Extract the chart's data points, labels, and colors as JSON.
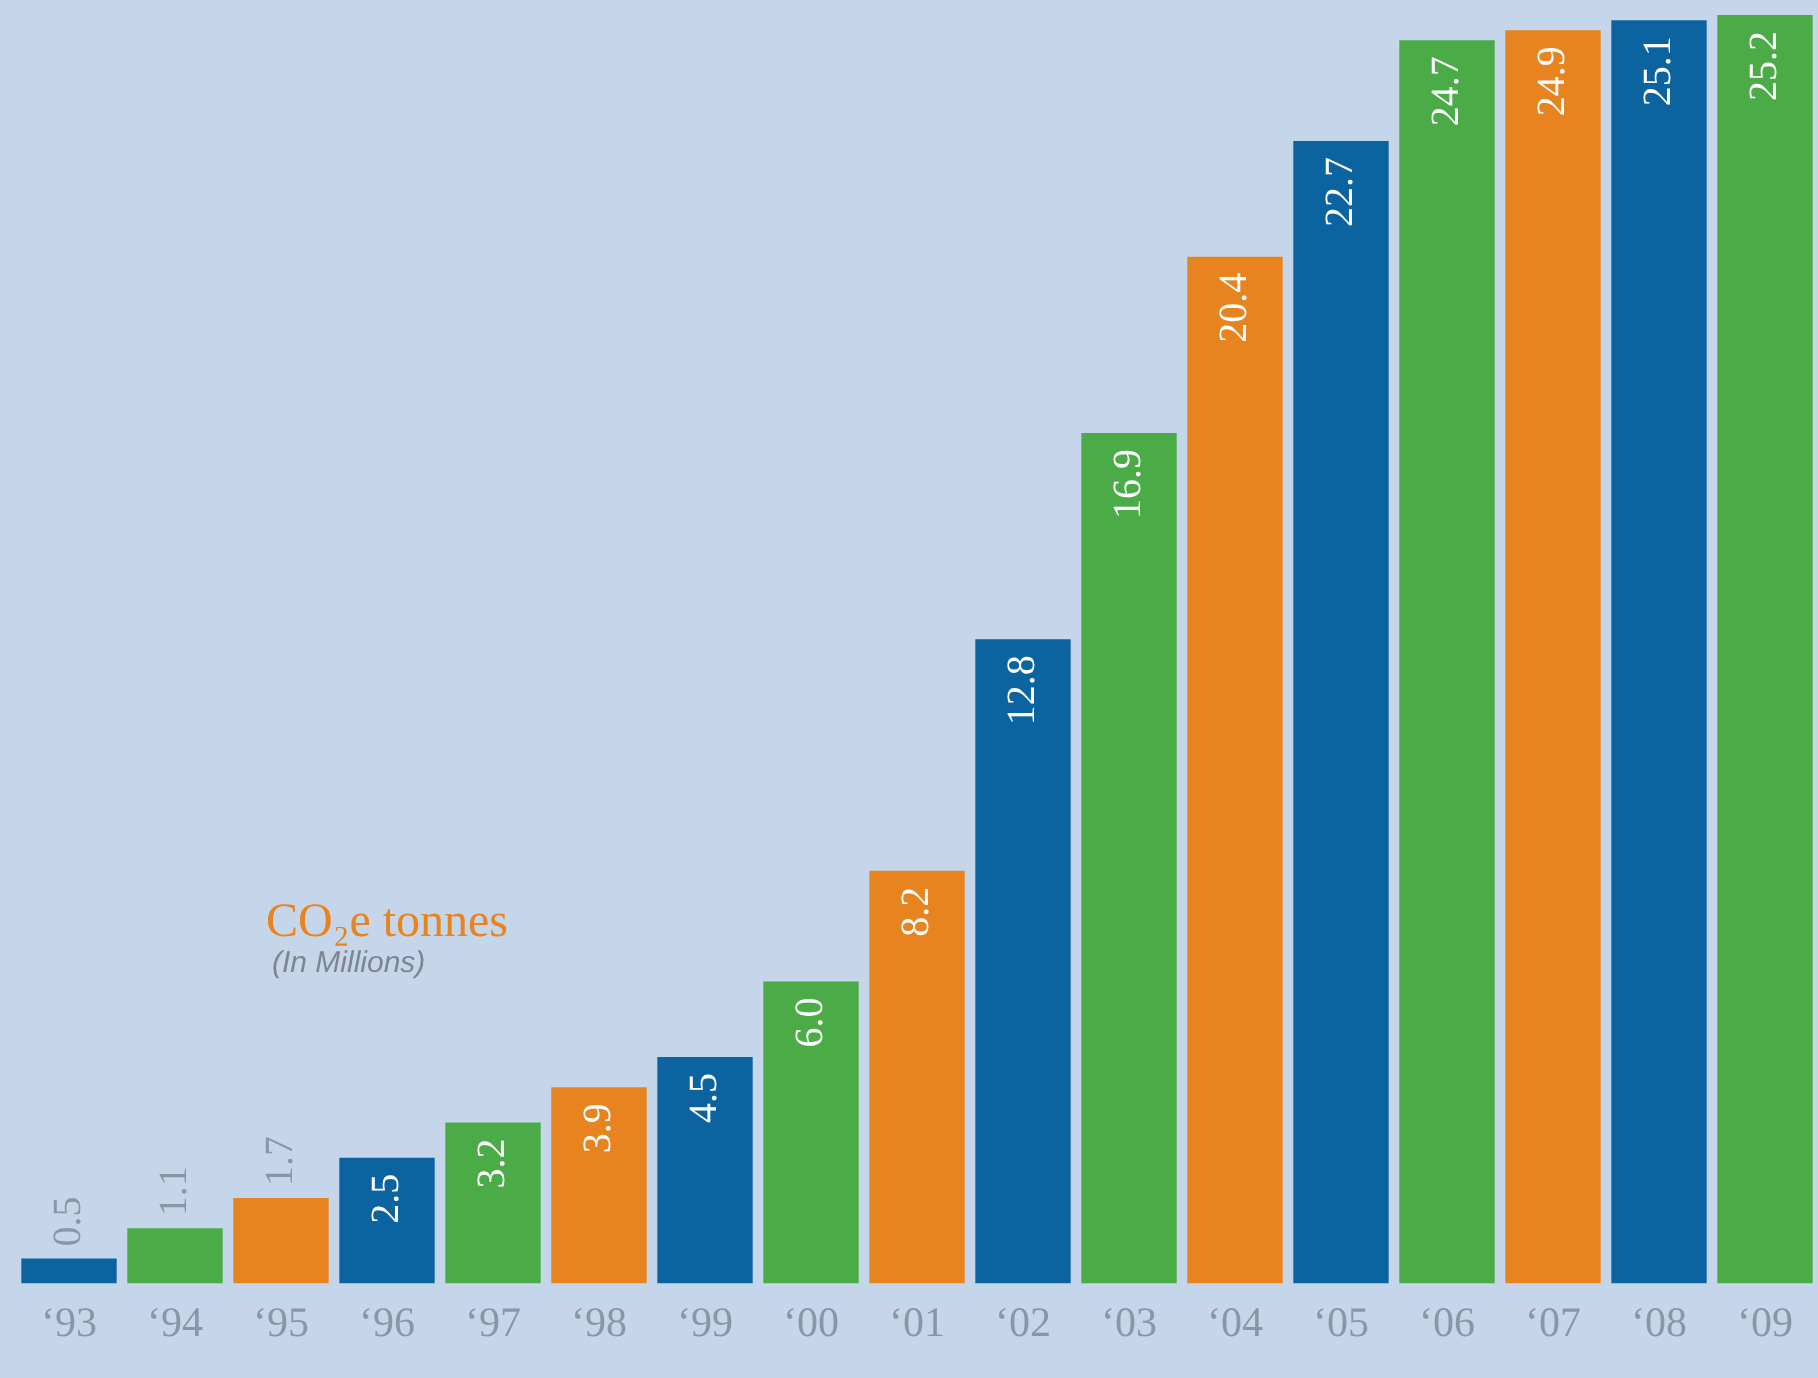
{
  "chart_data": {
    "type": "bar",
    "title": "CO₂e tonnes",
    "subtitle": "(In Millions)",
    "categories": [
      "‘93",
      "‘94",
      "‘95",
      "‘96",
      "‘97",
      "‘98",
      "‘99",
      "‘00",
      "‘01",
      "‘02",
      "‘03",
      "‘04",
      "‘05",
      "‘06",
      "‘07",
      "‘08",
      "‘09"
    ],
    "values": [
      0.5,
      1.1,
      1.7,
      2.5,
      3.2,
      3.9,
      4.5,
      6.0,
      8.2,
      12.8,
      16.9,
      20.4,
      22.7,
      24.7,
      24.9,
      25.1,
      25.2
    ],
    "colors": [
      "#0b64a0",
      "#4aab47",
      "#e8841f",
      "#0b64a0",
      "#4aab47",
      "#e8841f",
      "#0b64a0",
      "#4aab47",
      "#e8841f",
      "#0b64a0",
      "#4aab47",
      "#e8841f",
      "#0b64a0",
      "#4aab47",
      "#e8841f",
      "#0b64a0",
      "#4aab47"
    ],
    "value_labels": [
      "0.5",
      "1.1",
      "1.7",
      "2.5",
      "3.2",
      "3.9",
      "4.5",
      "6.0",
      "8.2",
      "12.8",
      "16.9",
      "20.4",
      "22.7",
      "24.7",
      "24.9",
      "25.1",
      "25.2"
    ],
    "ylim": [
      0,
      25.5
    ],
    "data_labels": true,
    "grid": false,
    "legend": false,
    "tick_labels": "x"
  }
}
